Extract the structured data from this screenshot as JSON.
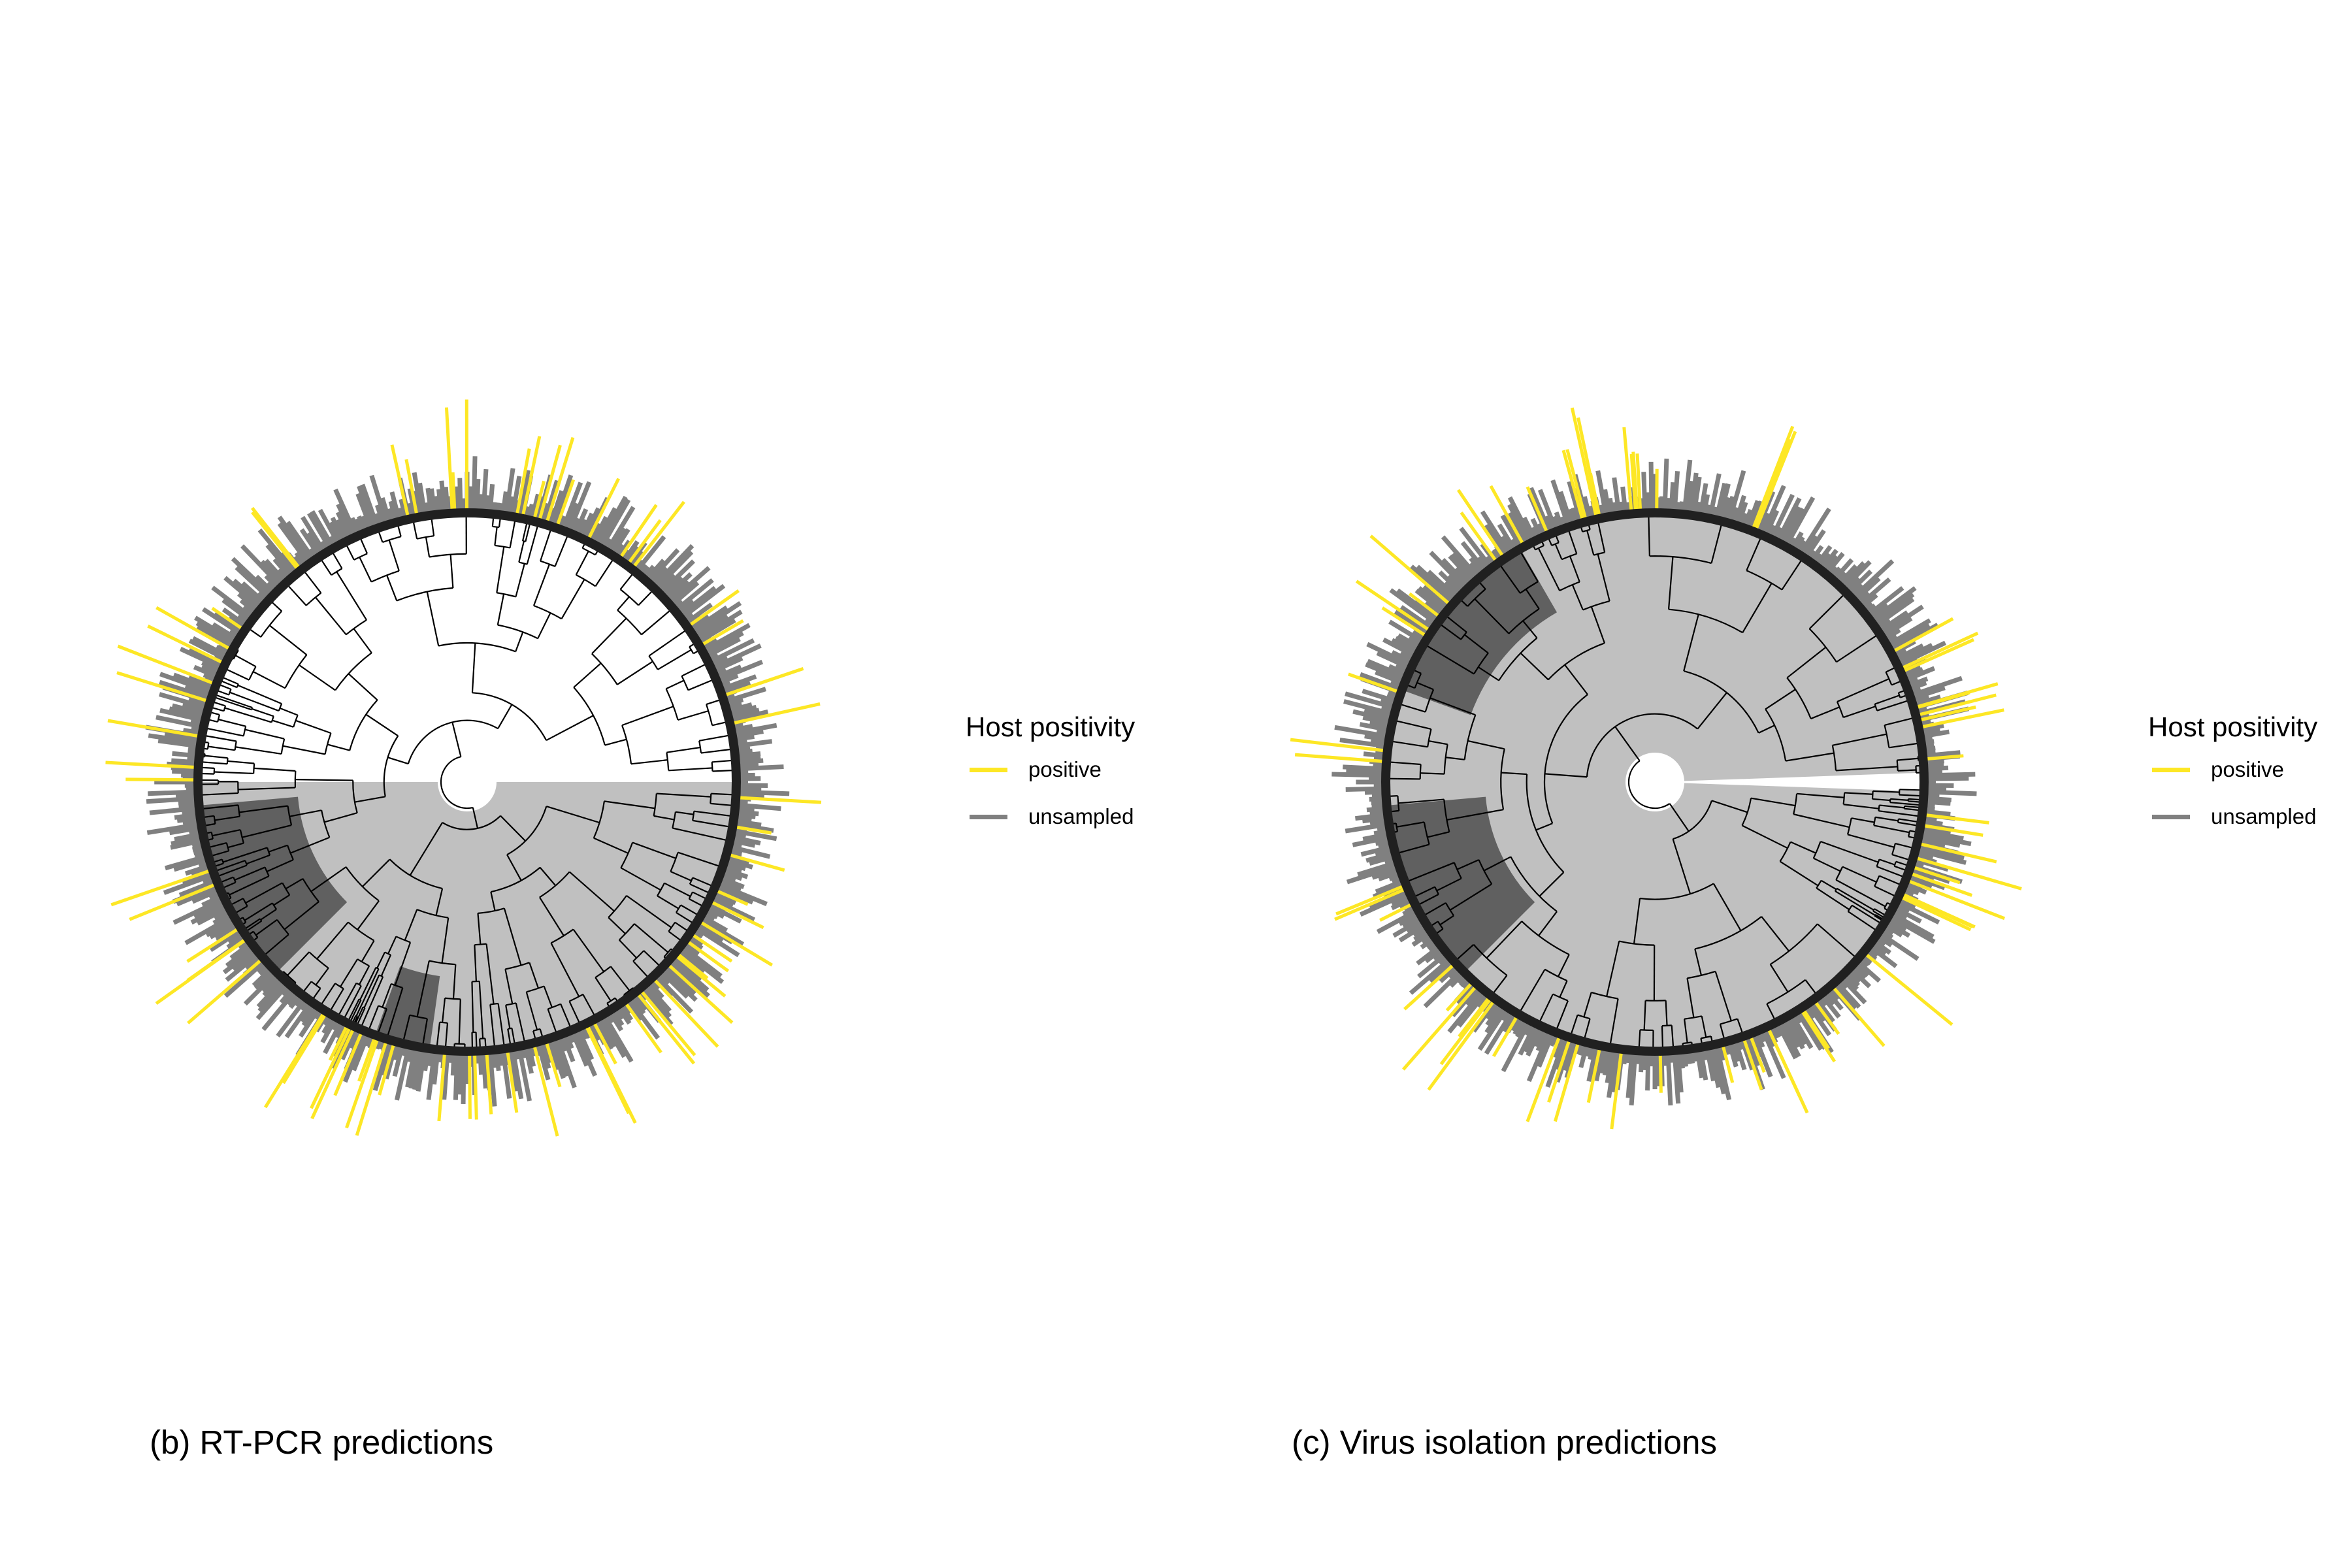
{
  "colors": {
    "positive": "#fde725",
    "unsampled": "#808080",
    "clade_light": "#c0c0c0",
    "clade_dark": "#606060",
    "ring": "#202020"
  },
  "panels": [
    {
      "id": "b",
      "caption": "(b) RT-PCR predictions",
      "legend": {
        "title": "Host positivity",
        "items": [
          {
            "label": "positive",
            "color": "#fde725"
          },
          {
            "label": "unsampled",
            "color": "#808080"
          }
        ]
      }
    },
    {
      "id": "c",
      "caption": "(c) Virus isolation predictions",
      "legend": {
        "title": "Host positivity",
        "items": [
          {
            "label": "positive",
            "color": "#fde725"
          },
          {
            "label": "unsampled",
            "color": "#808080"
          }
        ]
      }
    }
  ]
}
